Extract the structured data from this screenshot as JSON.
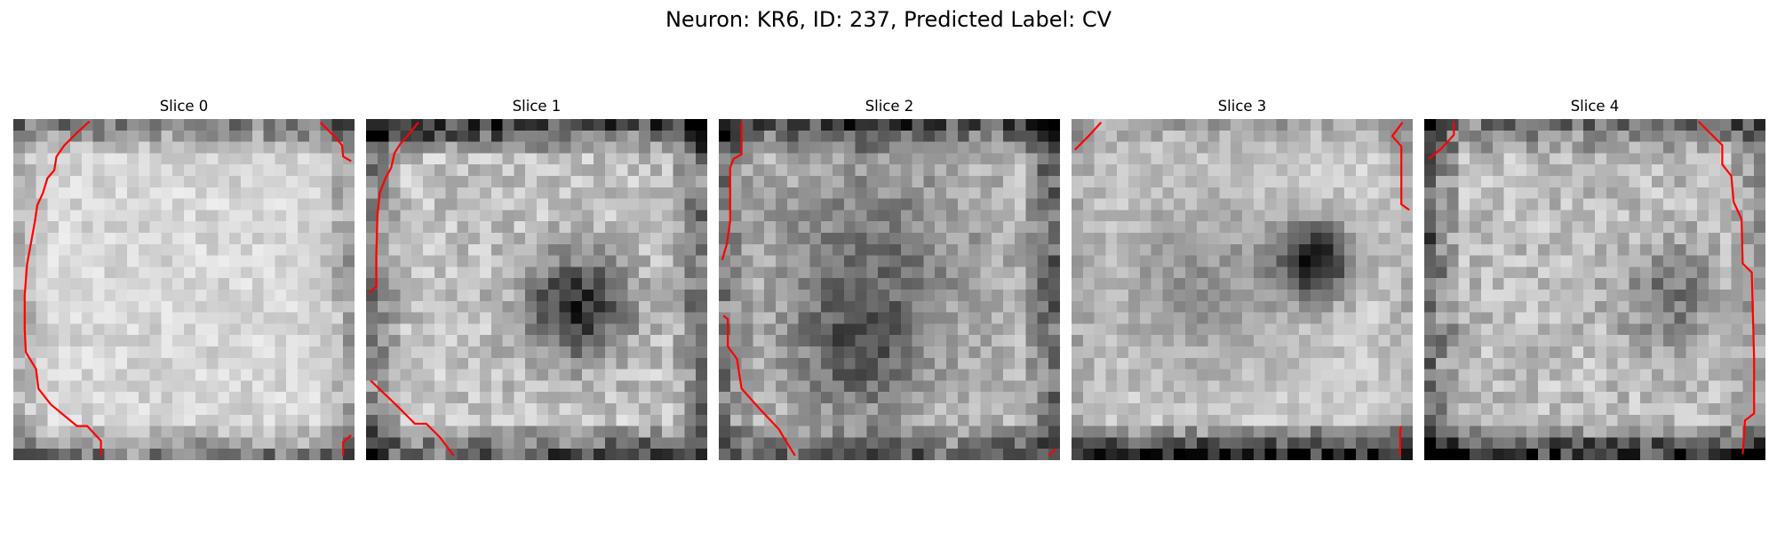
{
  "figure": {
    "title": "Neuron: KR6, ID: 237, Predicted Label: CV"
  },
  "colors": {
    "contour": "#ff0000",
    "colormap": "grayscale"
  },
  "slices": [
    {
      "label": "Slice 0"
    },
    {
      "label": "Slice 1"
    },
    {
      "label": "Slice 2"
    },
    {
      "label": "Slice 3"
    },
    {
      "label": "Slice 4"
    }
  ]
}
